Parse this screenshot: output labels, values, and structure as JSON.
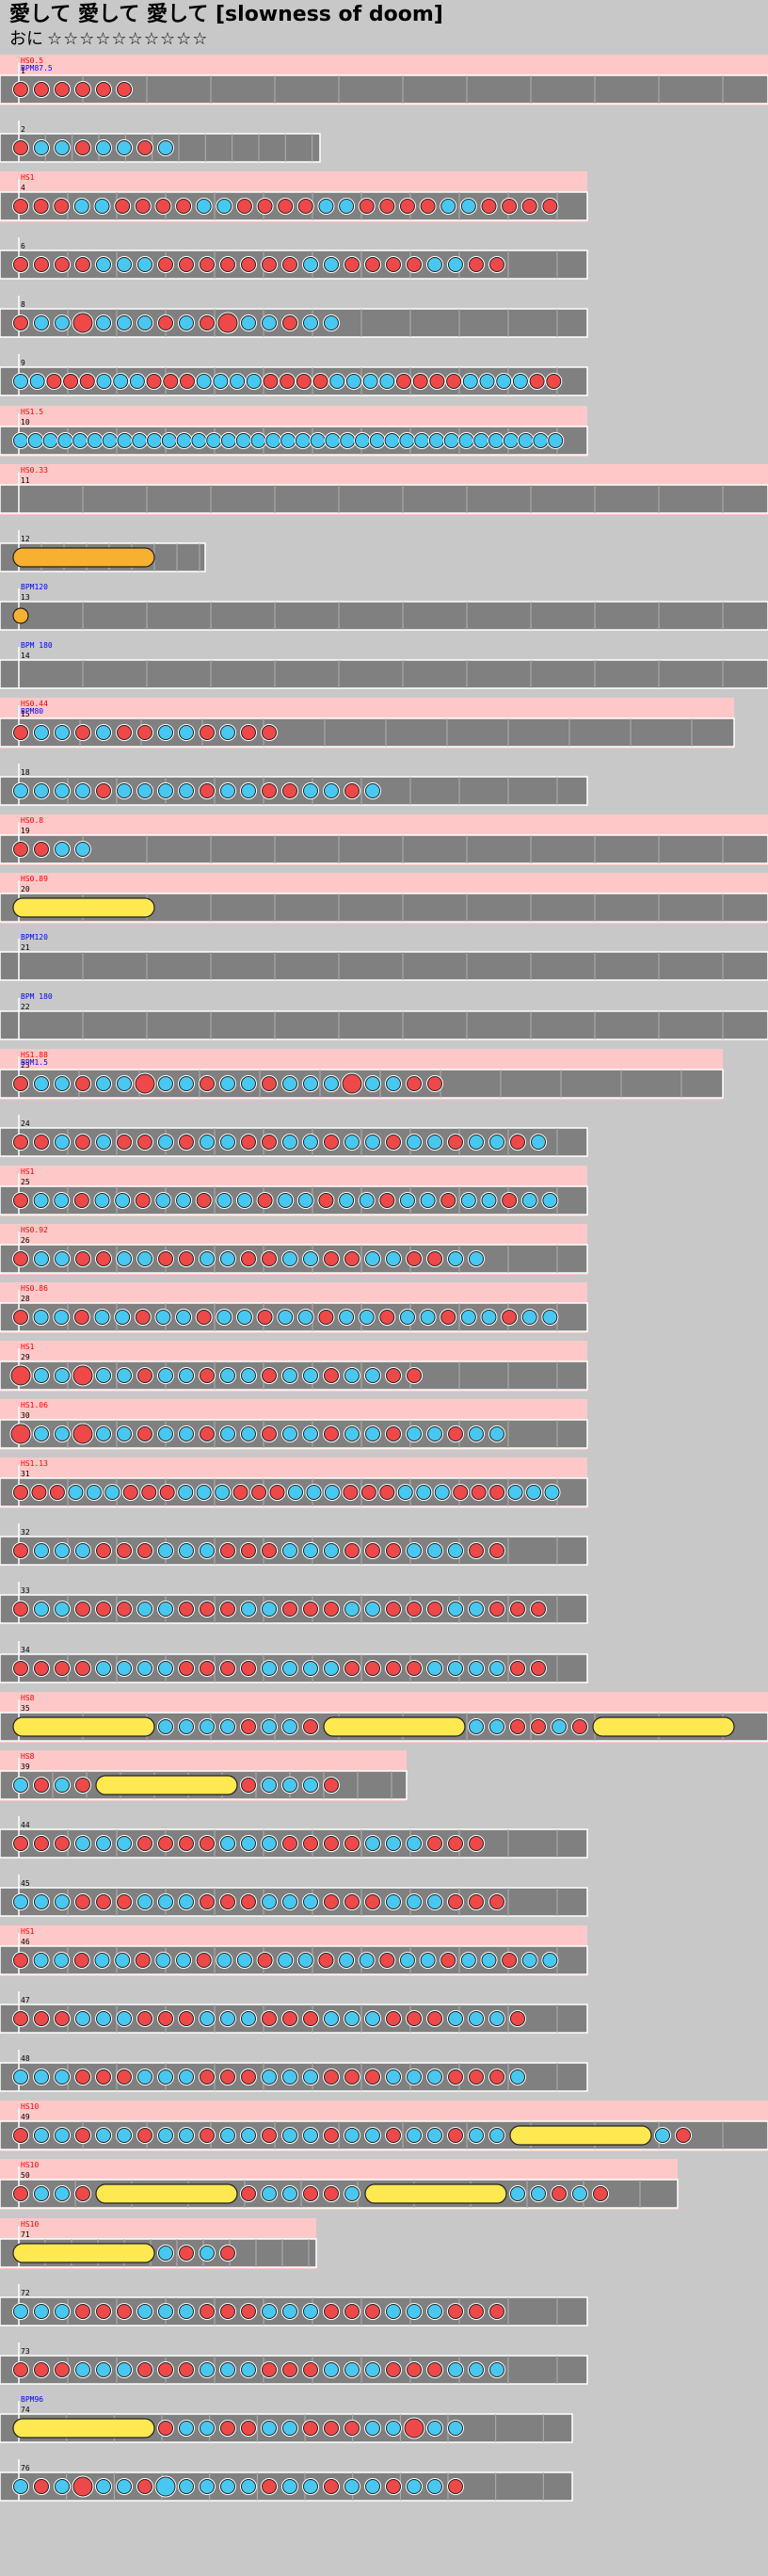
{
  "title": "愛して 愛して 愛して [slowness of doom]",
  "difficulty": {
    "label": "おに",
    "stars": "☆☆☆☆☆☆☆☆☆☆"
  },
  "colors": {
    "background": "#c8c8c8",
    "lane": "#808080",
    "lane_border": "#ffffff",
    "scroll_band": "#ffc8c8",
    "don": "#ee4848",
    "ka": "#48c8f0",
    "drumroll": "#ffe850",
    "drumroll_big": "#f8b030",
    "scroll_text": "#ff0000",
    "bpm_text": "#0000ff"
  },
  "rows": [
    {
      "measure": "1",
      "scroll": "HS0.5",
      "bpm": "BPM87.5",
      "notes": "dddddd"
    },
    {
      "measure": "2",
      "scroll": "",
      "bpm": "",
      "notes": "dkkdkkdk"
    },
    {
      "measure": "4",
      "scroll": "HS1",
      "bpm": "",
      "notes": "dddkkddddkkddddkkddddkkdddd"
    },
    {
      "measure": "6",
      "scroll": "",
      "bpm": "",
      "notes": "ddddkkkdddddddkkddddkkdd"
    },
    {
      "measure": "8",
      "scroll": "",
      "bpm": "",
      "notes": "dkkDkkkdkdDkkdkk"
    },
    {
      "measure": "9",
      "scroll": "",
      "bpm": "",
      "notes": "kkdddkkkdddkkkkddddkkkkddddkkkkdd"
    },
    {
      "measure": "10",
      "scroll": "HS1.5",
      "bpm": "",
      "notes": "kkkkkkkkkkkkkkkkkkkkkkkkkkkkkkkkkkkkk"
    },
    {
      "measure": "11",
      "scroll": "HS0.33",
      "bpm": "",
      "notes": ""
    },
    {
      "measure": "12",
      "scroll": "",
      "bpm": "",
      "notes": "R"
    },
    {
      "measure": "13",
      "scroll": "",
      "bpm": "BPM120",
      "notes": "B"
    },
    {
      "measure": "14",
      "scroll": "",
      "bpm": "BPM 180",
      "notes": ""
    },
    {
      "measure": "15",
      "scroll": "HS0.44",
      "bpm": "BPM80",
      "notes": "dkkdkddkkdkdd"
    },
    {
      "measure": "18",
      "scroll": "",
      "bpm": "",
      "notes": "kkkkdkkkkdkkddkkdk"
    },
    {
      "measure": "19",
      "scroll": "HS0.8",
      "bpm": "",
      "notes": "ddkk"
    },
    {
      "measure": "20",
      "scroll": "HS0.89",
      "bpm": "",
      "notes": "Y"
    },
    {
      "measure": "21",
      "scroll": "",
      "bpm": "BPM120",
      "notes": ""
    },
    {
      "measure": "22",
      "scroll": "",
      "bpm": "BPM 180",
      "notes": ""
    },
    {
      "measure": "23",
      "scroll": "HS1.88",
      "bpm": "BPM1.5",
      "notes": "dkkdkkDkkdkkdkkkDkkdd"
    },
    {
      "measure": "24",
      "scroll": "",
      "bpm": "",
      "notes": "ddkdkddkdkkddkkdkkdkkdkkdk"
    },
    {
      "measure": "25",
      "scroll": "HS1",
      "bpm": "",
      "notes": "dkkdkkdkkdkkdkkdkkdkkdkkdkk"
    },
    {
      "measure": "26",
      "scroll": "HS0.92",
      "bpm": "",
      "notes": "dkkddkkddkkddkkddkkddkk"
    },
    {
      "measure": "28",
      "scroll": "HS0.86",
      "bpm": "",
      "notes": "dkkdkkdkkdkkdkkdkkdkkdkkdkk"
    },
    {
      "measure": "29",
      "scroll": "HS1",
      "bpm": "",
      "notes": "DkkDkkdkkdkkdkkdkkdd"
    },
    {
      "measure": "30",
      "scroll": "HS1.06",
      "bpm": "",
      "notes": "DkkDkkdkkdkkdkkdkkdkkdkk"
    },
    {
      "measure": "31",
      "scroll": "HS1.13",
      "bpm": "",
      "notes": "dddkkkdddkkkdddkkkdddkkkdddkkk"
    },
    {
      "measure": "32",
      "scroll": "",
      "bpm": "",
      "notes": "dkkkdddkkkdddkkkdddkkkdd"
    },
    {
      "measure": "33",
      "scroll": "",
      "bpm": "",
      "notes": "dkkdddkkdddkkdddkkdddkkddd"
    },
    {
      "measure": "34",
      "scroll": "",
      "bpm": "",
      "notes": "ddddkkkkddddkkkkddddkkkkdd"
    },
    {
      "measure": "35",
      "scroll": "HS8",
      "bpm": "",
      "notes": "YkkkkdkkdYkkddkdY"
    },
    {
      "measure": "39",
      "scroll": "HS8",
      "bpm": "",
      "notes": "kdkdYdkkkd"
    },
    {
      "measure": "44",
      "scroll": "",
      "bpm": "",
      "notes": "dddkkkddddkkkddddkkkddd"
    },
    {
      "measure": "45",
      "scroll": "",
      "bpm": "",
      "notes": "kkkdddkkkdddkkkdddkkkddd"
    },
    {
      "measure": "46",
      "scroll": "HS1",
      "bpm": "",
      "notes": "dkkdkkdkkdkkdkkdkkdkkdkkdkk"
    },
    {
      "measure": "47",
      "scroll": "",
      "bpm": "",
      "notes": "dddkkkdddkkkdddkkkdddkkkd"
    },
    {
      "measure": "48",
      "scroll": "",
      "bpm": "",
      "notes": "kkkdddkkkdddkkkdddkkkdddk"
    },
    {
      "measure": "49",
      "scroll": "HS10",
      "bpm": "",
      "notes": "dkkdkkdkkdkkdkkdkkdkkdkkYkd"
    },
    {
      "measure": "50",
      "scroll": "HS10",
      "bpm": "",
      "notes": "dkkdYdkkddkYkkdkd"
    },
    {
      "measure": "71",
      "scroll": "HS10",
      "bpm": "",
      "notes": "Ykdkd"
    },
    {
      "measure": "72",
      "scroll": "",
      "bpm": "",
      "notes": "kkkdddkkkdddkkkdddkkkddd"
    },
    {
      "measure": "73",
      "scroll": "",
      "bpm": "",
      "notes": "dddkkkdddkkkdddkkkdddkkk"
    },
    {
      "measure": "74",
      "scroll": "",
      "bpm": "BPM96",
      "notes": "YdkkddkkdddkkDkk"
    },
    {
      "measure": "76",
      "scroll": "",
      "bpm": "",
      "notes": "kdkDkkdKkkkkdkkdkkdkkd"
    }
  ]
}
